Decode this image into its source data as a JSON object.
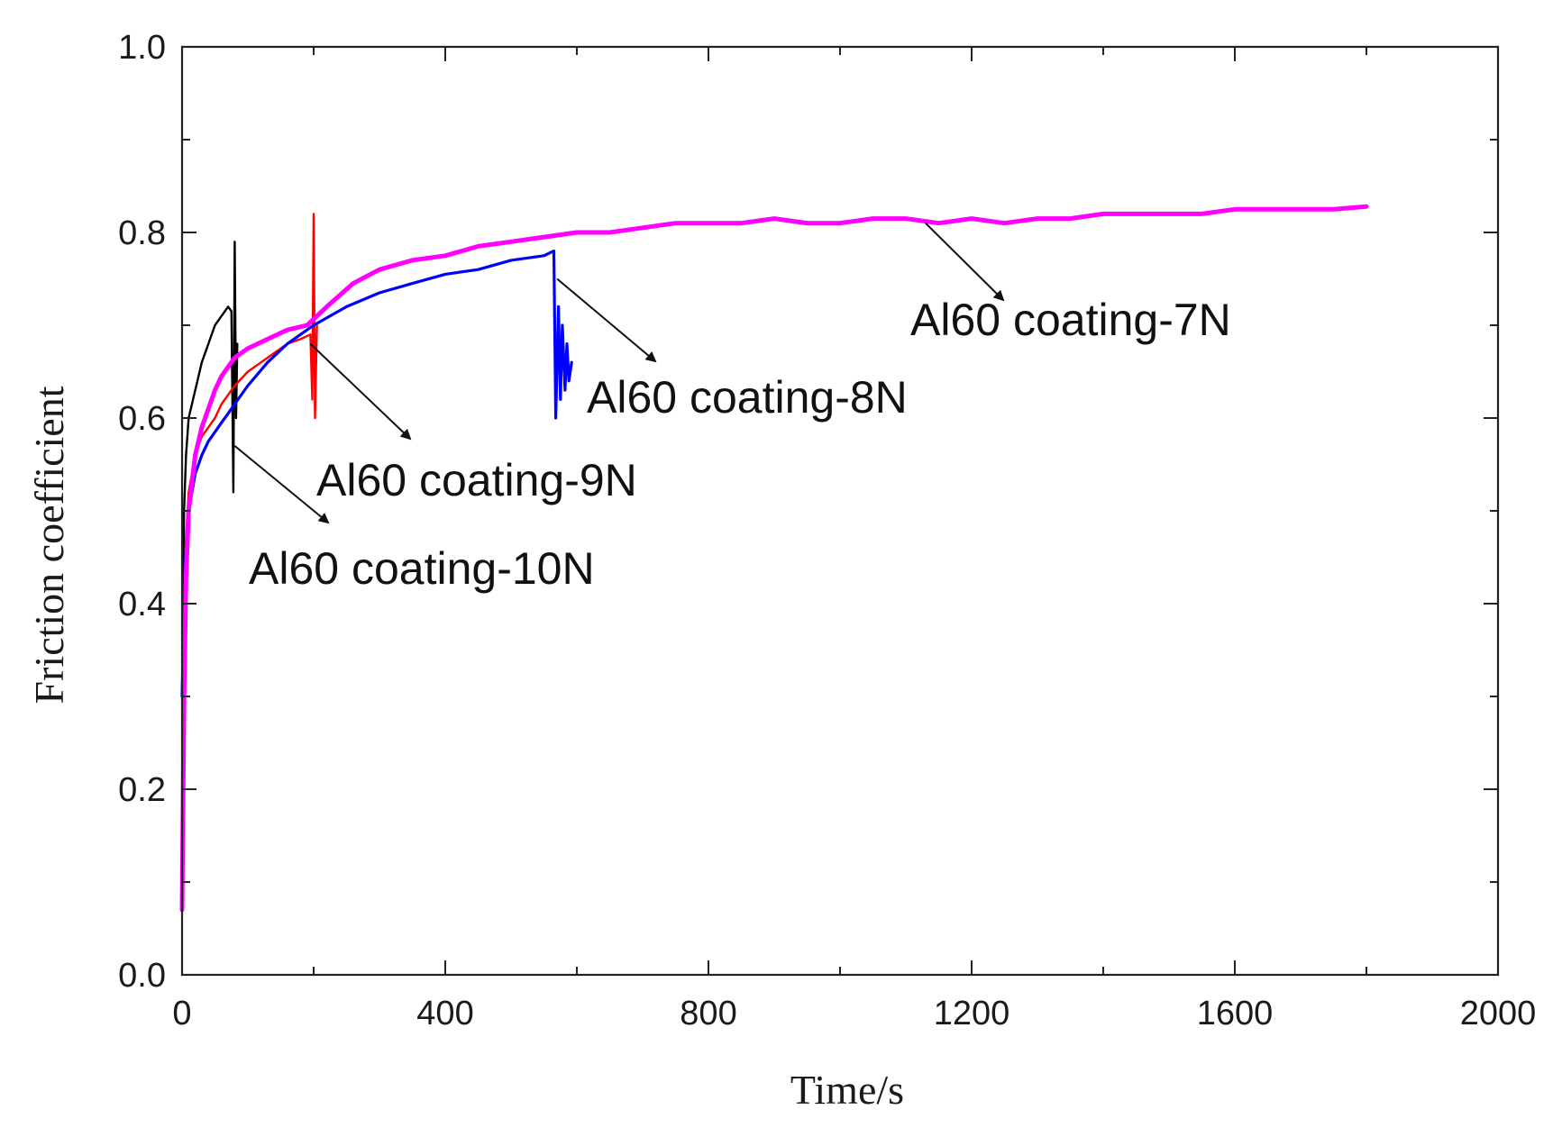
{
  "chart_data": {
    "type": "line",
    "title": "",
    "xlabel": "Time/s",
    "ylabel": "Friction coefficient",
    "xlim": [
      0,
      2000
    ],
    "ylim": [
      0.0,
      1.0
    ],
    "grid": false,
    "xticks": [
      "0",
      "400",
      "800",
      "1200",
      "1600",
      "2000"
    ],
    "yticks": [
      "0.0",
      "0.2",
      "0.4",
      "0.6",
      "0.8",
      "1.0"
    ],
    "series": [
      {
        "name": "Al60 coating-7N",
        "color": "#ff00ff",
        "x": [
          0,
          3,
          6,
          10,
          15,
          20,
          30,
          40,
          50,
          60,
          80,
          100,
          130,
          160,
          190,
          220,
          260,
          300,
          350,
          400,
          450,
          500,
          550,
          600,
          650,
          700,
          750,
          800,
          850,
          900,
          950,
          1000,
          1050,
          1100,
          1150,
          1200,
          1250,
          1300,
          1350,
          1400,
          1450,
          1500,
          1550,
          1600,
          1650,
          1700,
          1750,
          1800
        ],
        "y": [
          0.07,
          0.3,
          0.43,
          0.5,
          0.53,
          0.56,
          0.59,
          0.61,
          0.63,
          0.645,
          0.665,
          0.675,
          0.685,
          0.695,
          0.7,
          0.72,
          0.745,
          0.76,
          0.77,
          0.775,
          0.785,
          0.79,
          0.795,
          0.8,
          0.8,
          0.805,
          0.81,
          0.81,
          0.81,
          0.815,
          0.81,
          0.81,
          0.815,
          0.815,
          0.81,
          0.815,
          0.81,
          0.815,
          0.815,
          0.82,
          0.82,
          0.82,
          0.82,
          0.825,
          0.825,
          0.825,
          0.825,
          0.828
        ]
      },
      {
        "name": "Al60 coating-8N",
        "color": "#0000ff",
        "x": [
          0,
          5,
          10,
          20,
          30,
          40,
          50,
          60,
          70,
          80,
          100,
          130,
          160,
          200,
          250,
          300,
          350,
          400,
          450,
          500,
          550,
          565,
          568,
          572,
          575,
          578,
          582,
          585,
          588,
          592
        ],
        "y": [
          0.3,
          0.45,
          0.5,
          0.54,
          0.56,
          0.575,
          0.585,
          0.595,
          0.605,
          0.615,
          0.635,
          0.66,
          0.68,
          0.7,
          0.72,
          0.735,
          0.745,
          0.755,
          0.76,
          0.77,
          0.775,
          0.78,
          0.6,
          0.72,
          0.62,
          0.7,
          0.63,
          0.68,
          0.64,
          0.66
        ]
      },
      {
        "name": "Al60 coating-9N",
        "color": "#ff0000",
        "x": [
          0,
          5,
          10,
          20,
          30,
          40,
          50,
          60,
          80,
          100,
          120,
          140,
          160,
          180,
          195,
          198,
          200,
          202,
          205
        ],
        "y": [
          0.3,
          0.46,
          0.52,
          0.56,
          0.58,
          0.59,
          0.6,
          0.615,
          0.635,
          0.65,
          0.66,
          0.67,
          0.68,
          0.685,
          0.69,
          0.62,
          0.82,
          0.6,
          0.7
        ]
      },
      {
        "name": "Al60 coating-10N",
        "color": "#000000",
        "x": [
          0,
          3,
          6,
          10,
          20,
          30,
          40,
          50,
          60,
          70,
          75,
          78,
          80,
          82,
          84
        ],
        "y": [
          0.3,
          0.5,
          0.56,
          0.6,
          0.63,
          0.66,
          0.68,
          0.7,
          0.71,
          0.72,
          0.715,
          0.52,
          0.79,
          0.6,
          0.68
        ]
      }
    ],
    "annotations": [
      {
        "text": "Al60 coating-7N",
        "point_at": [
          1130,
          0.81
        ]
      },
      {
        "text": "Al60 coating-8N",
        "point_at": [
          570,
          0.75
        ]
      },
      {
        "text": "Al60 coating-9N",
        "point_at": [
          195,
          0.68
        ]
      },
      {
        "text": "Al60 coating-10N",
        "point_at": [
          80,
          0.57
        ]
      }
    ]
  }
}
